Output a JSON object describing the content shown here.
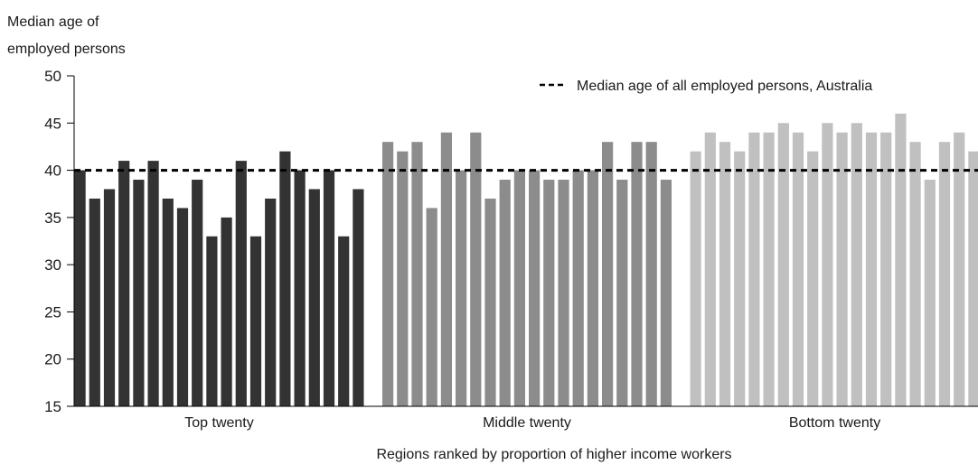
{
  "chart_data": {
    "type": "bar",
    "ylabel": [
      "Median age of",
      "employed persons"
    ],
    "xlabel": "Regions ranked by proportion of higher income workers",
    "ylim": [
      15,
      50
    ],
    "yticks": [
      15,
      20,
      25,
      30,
      35,
      40,
      45,
      50
    ],
    "grid": false,
    "legend": {
      "placement": "top-right",
      "label": "Median age of all employed persons, Australia"
    },
    "reference_line": {
      "value": 40,
      "style": "dashed",
      "color": "#000000"
    },
    "groups": [
      {
        "name": "Top twenty",
        "color": "#333333",
        "values": [
          40,
          37,
          38,
          41,
          39,
          41,
          37,
          36,
          39,
          33,
          35,
          41,
          33,
          37,
          42,
          40,
          38,
          40,
          33,
          38
        ]
      },
      {
        "name": "Middle twenty",
        "color": "#8c8c8c",
        "values": [
          43,
          42,
          43,
          36,
          44,
          40,
          44,
          37,
          39,
          40,
          40,
          39,
          39,
          40,
          40,
          43,
          39,
          43,
          43,
          39
        ]
      },
      {
        "name": "Bottom twenty",
        "color": "#c0c0c0",
        "values": [
          42,
          44,
          43,
          42,
          44,
          44,
          45,
          44,
          42,
          45,
          44,
          45,
          44,
          44,
          46,
          43,
          39,
          43,
          44,
          42
        ]
      }
    ]
  }
}
